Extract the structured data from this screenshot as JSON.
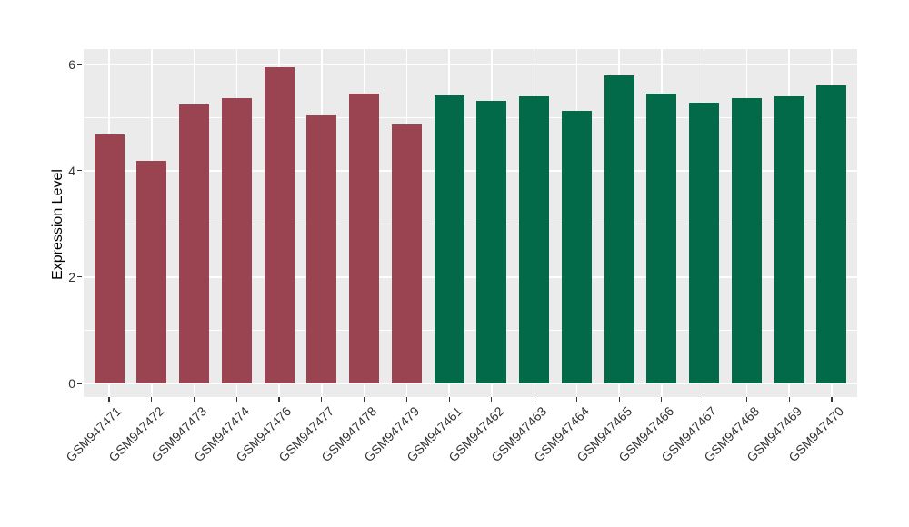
{
  "chart_data": {
    "type": "bar",
    "title": "",
    "xlabel": "",
    "ylabel": "Expression Level",
    "ylim": [
      0,
      6.29
    ],
    "yticks": [
      0,
      2,
      4,
      6
    ],
    "ytick_labels": [
      "0",
      "2",
      "4",
      "6"
    ],
    "yticks_minor": [
      1,
      3,
      5
    ],
    "grid": "on",
    "legend": "none",
    "panel_background": "#EBEBEB",
    "gridline_color": "#FFFFFF",
    "axis_text_color": "#333333",
    "categories": [
      "GSM947471",
      "GSM947472",
      "GSM947473",
      "GSM947474",
      "GSM947476",
      "GSM947477",
      "GSM947478",
      "GSM947479",
      "GSM947461",
      "GSM947462",
      "GSM947463",
      "GSM947464",
      "GSM947465",
      "GSM947466",
      "GSM947467",
      "GSM947468",
      "GSM947469",
      "GSM947470"
    ],
    "values": [
      4.68,
      4.18,
      5.24,
      5.37,
      5.94,
      5.03,
      5.44,
      4.86,
      5.41,
      5.31,
      5.4,
      5.13,
      5.79,
      5.45,
      5.27,
      5.37,
      5.39,
      5.61
    ],
    "bar_colors": [
      "#9A4451",
      "#9A4451",
      "#9A4451",
      "#9A4451",
      "#9A4451",
      "#9A4451",
      "#9A4451",
      "#9A4451",
      "#026949",
      "#026949",
      "#026949",
      "#026949",
      "#026949",
      "#026949",
      "#026949",
      "#026949",
      "#026949",
      "#026949"
    ],
    "group_colors": {
      "maroon": "#9A4451",
      "green": "#026949"
    }
  }
}
